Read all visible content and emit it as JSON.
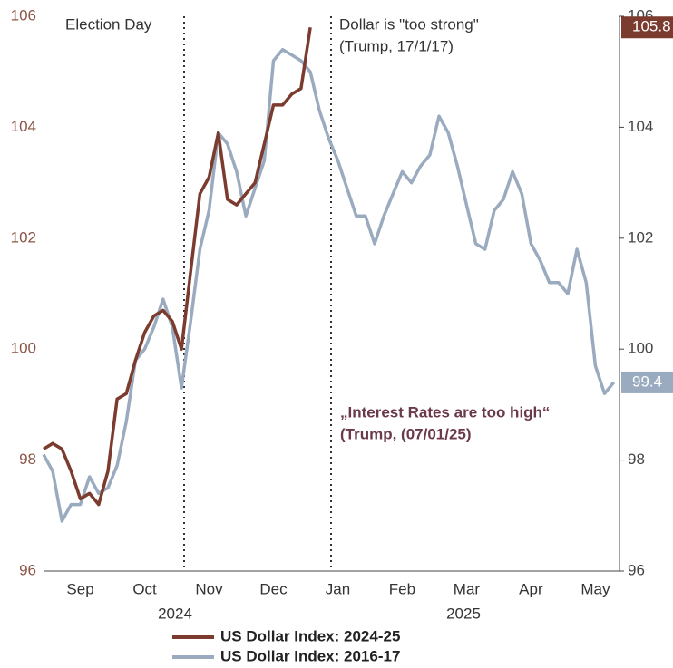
{
  "chart_data": {
    "type": "line",
    "categories": [
      null,
      null,
      null,
      null,
      "Sep",
      null,
      null,
      null,
      null,
      null,
      null,
      "Oct",
      null,
      null,
      null,
      null,
      null,
      null,
      "Nov",
      null,
      null,
      null,
      null,
      null,
      null,
      "Dec",
      null,
      null,
      null,
      null,
      null,
      null,
      "Jan",
      null,
      null,
      null,
      null,
      null,
      null,
      "Feb",
      null,
      null,
      null,
      null,
      null,
      null,
      "Mar",
      null,
      null,
      null,
      null,
      null,
      null,
      "Apr",
      null,
      null,
      null,
      null,
      null,
      null,
      "May",
      null,
      null
    ],
    "year_labels": [
      "2024",
      "2025"
    ],
    "series": [
      {
        "name": "US Dollar Index: 2024-25",
        "color": "#7b3b2e",
        "values": [
          98.2,
          98.3,
          98.2,
          97.8,
          97.3,
          97.4,
          97.2,
          97.8,
          99.1,
          99.2,
          99.8,
          100.3,
          100.6,
          100.7,
          100.5,
          100.0,
          101.4,
          102.8,
          103.1,
          103.9,
          102.7,
          102.6,
          102.8,
          103.0,
          103.7,
          104.4,
          104.4,
          104.6,
          104.7,
          105.8,
          null,
          null,
          null,
          null,
          null,
          null,
          null,
          null,
          null,
          null,
          null,
          null,
          null,
          null,
          null,
          null,
          null,
          null,
          null,
          null,
          null,
          null,
          null,
          null,
          null,
          null,
          null,
          null,
          null,
          null,
          null,
          null,
          null
        ]
      },
      {
        "name": "US Dollar Index: 2016-17",
        "color": "#9aabc0",
        "axis": "y2",
        "values": [
          98.1,
          97.8,
          96.9,
          97.2,
          97.2,
          97.7,
          97.4,
          97.5,
          97.9,
          98.7,
          99.8,
          100.0,
          100.4,
          100.9,
          100.4,
          99.3,
          100.5,
          101.8,
          102.5,
          103.9,
          103.7,
          103.2,
          102.4,
          102.9,
          103.4,
          105.2,
          105.4,
          105.3,
          105.2,
          105.0,
          104.3,
          103.8,
          103.4,
          102.9,
          102.4,
          102.4,
          101.9,
          102.4,
          102.8,
          103.2,
          103.0,
          103.3,
          103.5,
          104.2,
          103.9,
          103.3,
          102.6,
          101.9,
          101.8,
          102.5,
          102.7,
          103.2,
          102.8,
          101.9,
          101.6,
          101.2,
          101.2,
          101.0,
          101.8,
          101.2,
          99.7,
          99.2,
          99.4
        ]
      }
    ],
    "ylim": [
      96,
      106
    ],
    "yticks": [
      96,
      98,
      100,
      102,
      104,
      106
    ],
    "y2lim": [
      96,
      106
    ],
    "y2ticks": [
      96,
      98,
      100,
      102,
      104,
      106
    ],
    "annotations": [
      {
        "lines": [
          "Election Day"
        ]
      },
      {
        "lines": [
          "Dollar is \"too strong\"",
          "(Trump, 17/1/17)"
        ]
      },
      {
        "lines": [
          "„Interest Rates are too high“",
          "(Trump, (07/01/25)"
        ]
      }
    ]
  }
}
